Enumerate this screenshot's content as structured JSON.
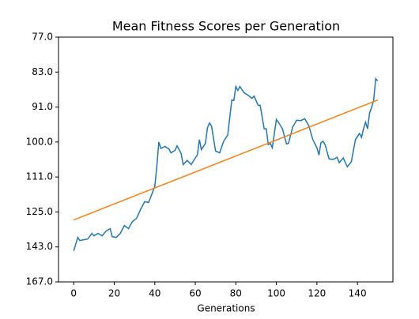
{
  "chart_data": {
    "type": "line",
    "title": "Mean Fitness Scores per Generation",
    "xlabel": "Generations",
    "xlim": [
      -7.5,
      157.5
    ],
    "xticks": [
      0,
      20,
      40,
      60,
      80,
      100,
      120,
      140
    ],
    "ylim": [
      167,
      77
    ],
    "yticks": [
      {
        "value": 77,
        "label": "77.0"
      },
      {
        "value": 83,
        "label": "83.0"
      },
      {
        "value": 91,
        "label": "91.0"
      },
      {
        "value": 100,
        "label": "100.0"
      },
      {
        "value": 111,
        "label": "111.0"
      },
      {
        "value": 125,
        "label": "125.0"
      },
      {
        "value": 143,
        "label": "143.0"
      },
      {
        "value": 167,
        "label": "167.0"
      }
    ],
    "series": [
      {
        "color": "#1f77b4",
        "x": [
          0,
          2,
          3,
          5,
          7,
          9,
          10,
          12,
          14,
          16,
          18,
          19,
          21,
          23,
          25,
          27,
          29,
          31,
          33,
          35,
          37,
          38,
          40,
          41,
          42,
          43,
          45,
          47,
          48,
          50,
          51,
          53,
          54,
          56,
          58,
          60,
          61,
          62,
          63,
          65,
          66,
          67,
          68,
          70,
          72,
          74,
          76,
          78,
          79,
          80,
          81,
          82,
          84,
          86,
          88,
          89,
          91,
          92,
          94,
          95,
          96,
          97,
          98,
          100,
          101,
          103,
          105,
          106,
          108,
          110,
          112,
          114,
          116,
          118,
          120,
          121,
          122,
          123,
          124,
          126,
          128,
          130,
          131,
          133,
          135,
          137,
          139,
          141,
          142,
          143,
          144,
          145,
          146,
          147,
          148,
          149,
          150
        ],
        "values": [
          145.7,
          138.1,
          139.7,
          139.3,
          138.9,
          136,
          137.3,
          136,
          137.3,
          134.8,
          133.6,
          137.7,
          138.1,
          136,
          132,
          133.6,
          129.9,
          128.3,
          124,
          120.9,
          121.2,
          119,
          114.8,
          107.8,
          100,
          102,
          101.4,
          102.2,
          103.4,
          102.6,
          101.2,
          103.6,
          107.1,
          105.8,
          107.1,
          105,
          104.1,
          99.4,
          102.4,
          100.4,
          96.3,
          95.1,
          95.9,
          102.8,
          103.4,
          99.8,
          98.2,
          89.4,
          89.5,
          86.3,
          87.2,
          86.3,
          87.7,
          88.3,
          89,
          88.5,
          90.6,
          90.6,
          96.6,
          96.6,
          100.8,
          100.4,
          101.8,
          94.2,
          94.9,
          96.6,
          100.6,
          100.4,
          96.2,
          94.4,
          94.5,
          94,
          95.8,
          99.4,
          101.8,
          104.1,
          100.2,
          99.8,
          100.8,
          105.3,
          105.5,
          104.8,
          106.5,
          105,
          107.8,
          106.2,
          99.4,
          97.8,
          98.8,
          96.6,
          94.9,
          96.6,
          92.5,
          91.1,
          89.5,
          84.5,
          85
        ]
      },
      {
        "color": "#ff7f0e",
        "x": [
          0,
          150
        ],
        "values": [
          129.1,
          89.4
        ]
      }
    ]
  }
}
